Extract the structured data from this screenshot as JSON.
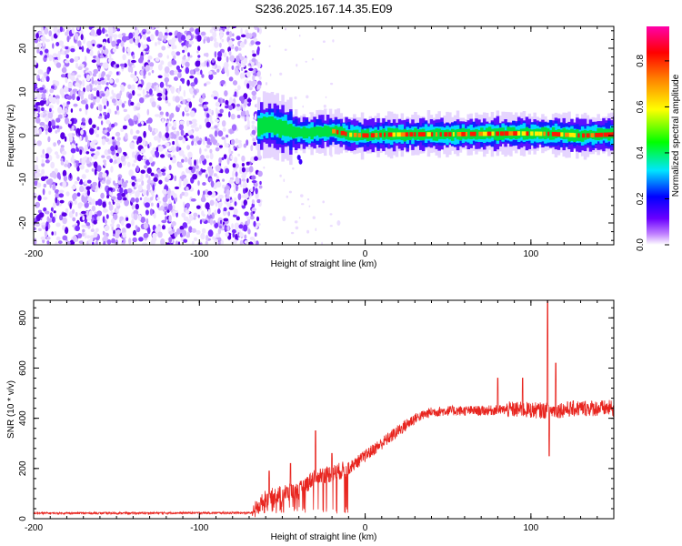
{
  "figure": {
    "title": "S236.2025.167.14.35.E09"
  },
  "chart_data": [
    {
      "type": "heatmap",
      "title": "S236.2025.167.14.35.E09",
      "xlabel": "Height of straight line (km)",
      "ylabel": "Frequency (Hz)",
      "xlim": [
        -200,
        150
      ],
      "ylim": [
        -25,
        25
      ],
      "x_ticks": [
        -200,
        -100,
        0,
        100
      ],
      "x_tick_labels": [
        "-200",
        "-100",
        "0",
        "100"
      ],
      "y_ticks": [
        -20,
        -10,
        0,
        10,
        20
      ],
      "y_tick_labels": [
        "-20",
        "-10",
        "0",
        "10",
        "20"
      ],
      "noise_region_x": [
        -200,
        -63
      ],
      "signal_band": [
        {
          "x": -65,
          "freq": 2.0
        },
        {
          "x": -58,
          "freq": 2.5
        },
        {
          "x": -50,
          "freq": 1.5
        },
        {
          "x": -40,
          "freq": 0.5
        },
        {
          "x": -30,
          "freq": 0.8
        },
        {
          "x": -20,
          "freq": 1.0
        },
        {
          "x": -10,
          "freq": 0.2
        },
        {
          "x": 0,
          "freq": 0.0
        },
        {
          "x": 10,
          "freq": 0.2
        },
        {
          "x": 30,
          "freq": 0.3
        },
        {
          "x": 50,
          "freq": 0.3
        },
        {
          "x": 70,
          "freq": 0.4
        },
        {
          "x": 90,
          "freq": 0.5
        },
        {
          "x": 110,
          "freq": 0.4
        },
        {
          "x": 130,
          "freq": 0.0
        },
        {
          "x": 150,
          "freq": 0.3
        }
      ],
      "colorbar": {
        "label": "Normalized spectral amplitude",
        "range": [
          0,
          0.95
        ],
        "ticks": [
          0.0,
          0.2,
          0.4,
          0.6,
          0.8
        ],
        "tick_labels": [
          "0.0",
          "0.2",
          "0.4",
          "0.6",
          "0.8"
        ],
        "colors": [
          "#ffffff",
          "#6a00ff",
          "#0000ff",
          "#00e5ff",
          "#00ff00",
          "#ffff00",
          "#ff8000",
          "#ff0000",
          "#ff00aa"
        ]
      },
      "grid": false
    },
    {
      "type": "line",
      "xlabel": "Height of straight line (km)",
      "ylabel": "SNR (10 * v/v)",
      "xlim": [
        -200,
        150
      ],
      "ylim": [
        0,
        870
      ],
      "x_ticks": [
        -200,
        -100,
        0,
        100
      ],
      "x_tick_labels": [
        "-200",
        "-100",
        "0",
        "100"
      ],
      "y_ticks": [
        0,
        200,
        400,
        600,
        800
      ],
      "y_tick_labels": [
        "0",
        "200",
        "400",
        "600",
        "800"
      ],
      "color": "#e8251f",
      "baseline": [
        {
          "x": -200,
          "y": 22
        },
        {
          "x": -150,
          "y": 22
        },
        {
          "x": -100,
          "y": 23
        },
        {
          "x": -68,
          "y": 23
        },
        {
          "x": -60,
          "y": 80
        },
        {
          "x": -50,
          "y": 100
        },
        {
          "x": -40,
          "y": 110
        },
        {
          "x": -30,
          "y": 170
        },
        {
          "x": -20,
          "y": 180
        },
        {
          "x": -10,
          "y": 200
        },
        {
          "x": 0,
          "y": 250
        },
        {
          "x": 10,
          "y": 300
        },
        {
          "x": 20,
          "y": 350
        },
        {
          "x": 30,
          "y": 400
        },
        {
          "x": 40,
          "y": 425
        },
        {
          "x": 50,
          "y": 430
        },
        {
          "x": 70,
          "y": 430
        },
        {
          "x": 90,
          "y": 435
        },
        {
          "x": 110,
          "y": 430
        },
        {
          "x": 130,
          "y": 440
        },
        {
          "x": 150,
          "y": 440
        }
      ],
      "spikes": [
        {
          "x": -58,
          "y": 190
        },
        {
          "x": -45,
          "y": 220
        },
        {
          "x": -30,
          "y": 350
        },
        {
          "x": -20,
          "y": 260
        },
        {
          "x": 80,
          "y": 560
        },
        {
          "x": 95,
          "y": 560
        },
        {
          "x": 110,
          "y": 870
        },
        {
          "x": 111,
          "y": 250
        },
        {
          "x": 115,
          "y": 620
        }
      ],
      "grid": false
    }
  ]
}
